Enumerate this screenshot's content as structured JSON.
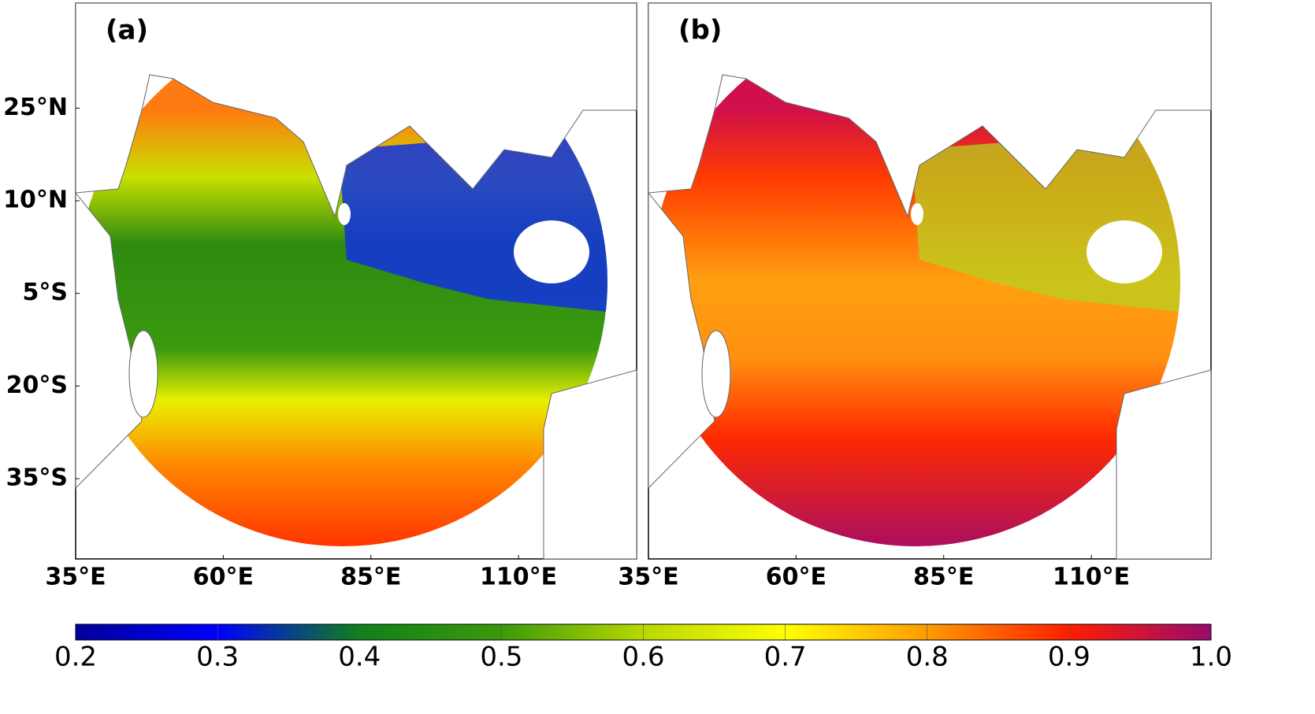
{
  "panels": [
    {
      "label": "(a)"
    },
    {
      "label": "(b)"
    }
  ],
  "map": {
    "xlim": [
      35,
      130
    ],
    "ylim": [
      -48,
      42
    ],
    "xticks": [
      {
        "value": 35,
        "label": "35°E"
      },
      {
        "value": 60,
        "label": "60°E"
      },
      {
        "value": 85,
        "label": "85°E"
      },
      {
        "value": 110,
        "label": "110°E"
      }
    ],
    "yticks": [
      {
        "value": 25,
        "label": "25°N"
      },
      {
        "value": 10,
        "label": "10°N"
      },
      {
        "value": -5,
        "label": "5°S"
      },
      {
        "value": -20,
        "label": "20°S"
      },
      {
        "value": -35,
        "label": "35°S"
      }
    ]
  },
  "colorbar": {
    "lim": [
      0.2,
      1.0
    ],
    "ticks": [
      0.2,
      0.3,
      0.4,
      0.5,
      0.6,
      0.7,
      0.8,
      0.9,
      {
        "value": 1,
        "label": "1.0"
      }
    ],
    "colors": [
      "#00009a",
      "#0000ff",
      "#10801a",
      "#3b9a0a",
      "#b8d800",
      "#ffff00",
      "#ff9b00",
      "#ff1e00",
      "#9a0a6e"
    ]
  }
}
